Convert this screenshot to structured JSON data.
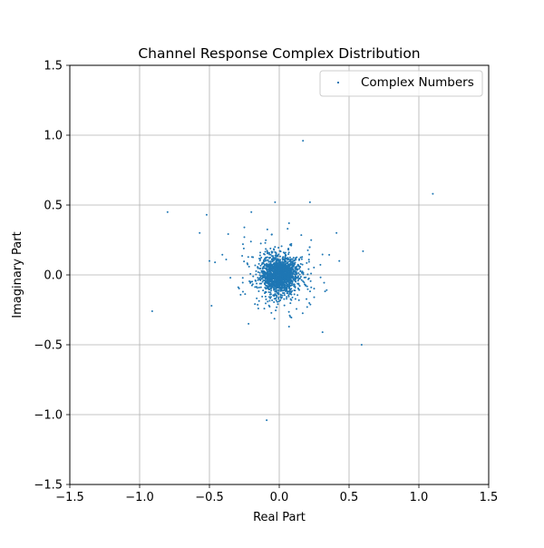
{
  "chart_data": {
    "type": "scatter",
    "title": "Channel Response Complex Distribution",
    "xlabel": "Real Part",
    "ylabel": "Imaginary Part",
    "xlim": [
      -1.5,
      1.5
    ],
    "ylim": [
      -1.5,
      1.5
    ],
    "xticks": [
      -1.5,
      -1.0,
      -0.5,
      0.0,
      0.5,
      1.0,
      1.5
    ],
    "yticks": [
      -1.5,
      -1.0,
      -0.5,
      0.0,
      0.5,
      1.0,
      1.5
    ],
    "xtick_labels": [
      "−1.5",
      "−1.0",
      "−0.5",
      "0.0",
      "0.5",
      "1.0",
      "1.5"
    ],
    "ytick_labels": [
      "−1.5",
      "−1.0",
      "−0.5",
      "0.0",
      "0.5",
      "1.0",
      "1.5"
    ],
    "grid": true,
    "legend": {
      "placement": "top-right",
      "entries": [
        "Complex Numbers"
      ]
    },
    "marker_color": "#1f77b4",
    "series": [
      {
        "name": "Complex Numbers",
        "outliers": [
          [
            0.17,
            0.96
          ],
          [
            1.1,
            0.58
          ],
          [
            -0.8,
            0.45
          ],
          [
            -0.52,
            0.43
          ],
          [
            -0.57,
            0.3
          ],
          [
            -0.91,
            -0.26
          ],
          [
            -0.09,
            -1.04
          ],
          [
            0.31,
            -0.41
          ],
          [
            0.59,
            -0.5
          ],
          [
            0.6,
            0.17
          ],
          [
            0.41,
            0.3
          ],
          [
            0.43,
            0.1
          ],
          [
            0.22,
            0.52
          ],
          [
            -0.03,
            0.52
          ],
          [
            -0.2,
            0.45
          ],
          [
            0.07,
            0.37
          ],
          [
            -0.25,
            0.34
          ],
          [
            -0.25,
            0.27
          ],
          [
            -0.5,
            0.1
          ],
          [
            -0.46,
            0.09
          ],
          [
            -0.38,
            0.11
          ],
          [
            -0.35,
            -0.02
          ],
          [
            0.07,
            -0.37
          ],
          [
            -0.22,
            -0.35
          ],
          [
            -0.15,
            -0.24
          ],
          [
            0.2,
            -0.23
          ],
          [
            0.25,
            -0.16
          ],
          [
            -0.26,
            -0.12
          ],
          [
            0.06,
            0.33
          ],
          [
            -0.26,
            0.22
          ]
        ],
        "cluster": {
          "center": [
            0.0,
            0.0
          ],
          "std": 0.065,
          "count": 1800
        }
      }
    ]
  }
}
